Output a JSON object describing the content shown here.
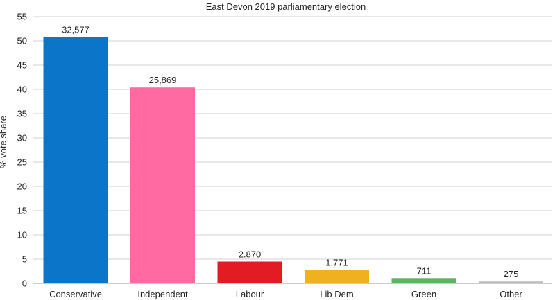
{
  "chart_data": {
    "type": "bar",
    "title": "East Devon 2019 parliamentary election",
    "xlabel": "",
    "ylabel": "% vote share",
    "ylim": [
      0,
      55
    ],
    "yticks": [
      0,
      5,
      10,
      15,
      20,
      25,
      30,
      35,
      40,
      45,
      50,
      55
    ],
    "grid": true,
    "categories": [
      "Conservative",
      "Independent",
      "Labour",
      "Lib Dem",
      "Green",
      "Other"
    ],
    "values": [
      50.8,
      40.4,
      4.5,
      2.8,
      1.1,
      0.4
    ],
    "data_labels": [
      "32,577",
      "25,869",
      "2.870",
      "1,771",
      "711",
      "275"
    ],
    "colors": [
      "#0a75c9",
      "#ff6aa2",
      "#e31b23",
      "#efb21e",
      "#5bb55b",
      "#bdbdbd"
    ]
  }
}
